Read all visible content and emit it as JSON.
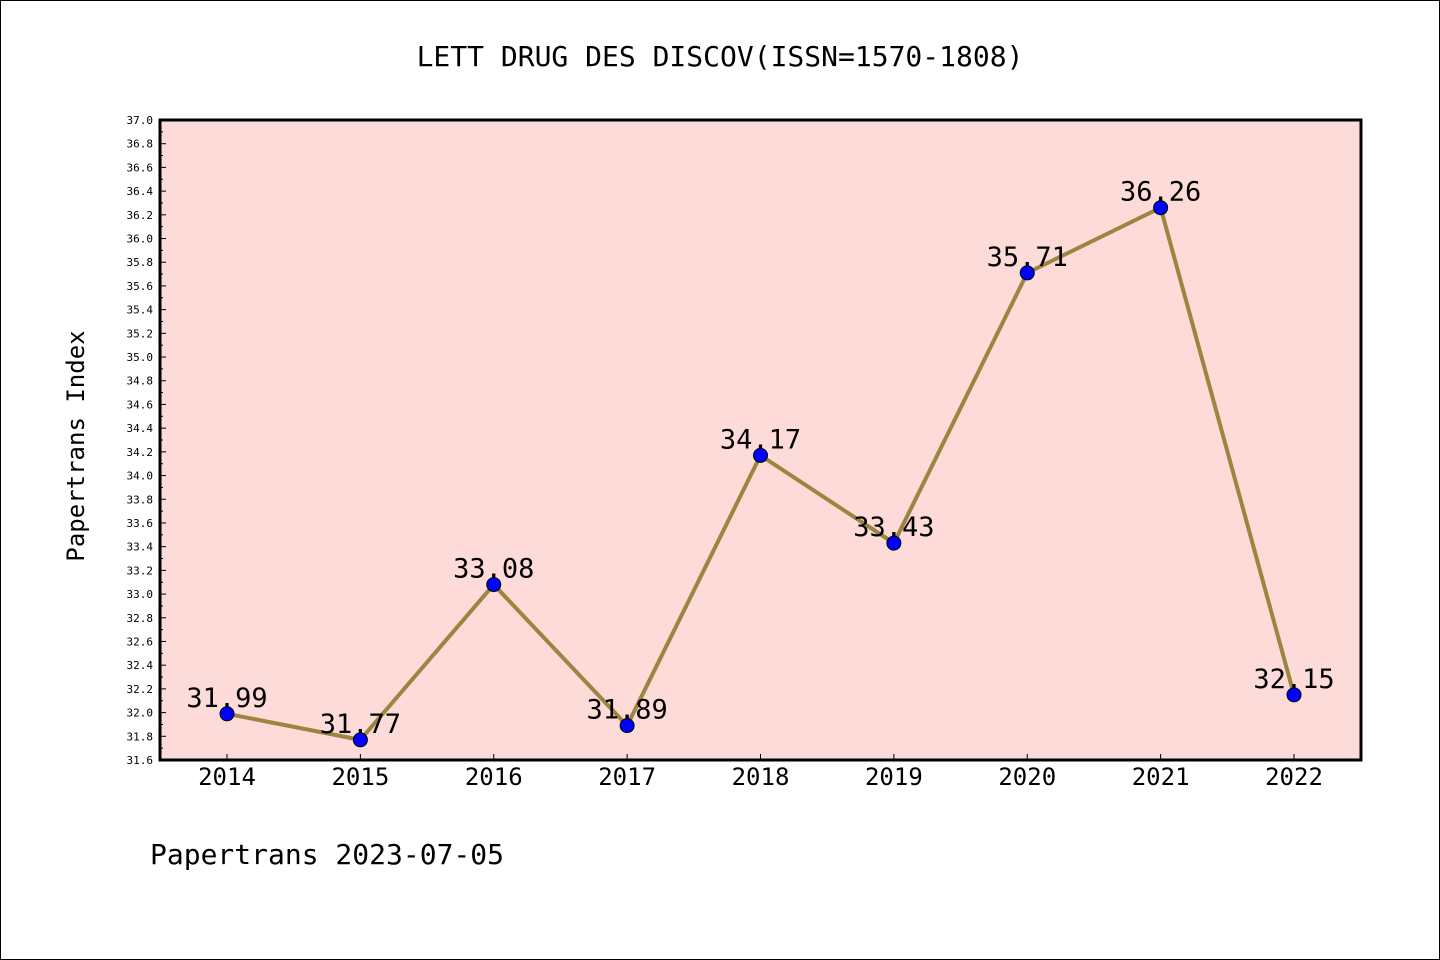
{
  "chart_data": {
    "type": "line",
    "title": "LETT DRUG DES DISCOV(ISSN=1570-1808)",
    "xlabel": "",
    "ylabel": "Papertrans Index",
    "categories": [
      "2014",
      "2015",
      "2016",
      "2017",
      "2018",
      "2019",
      "2020",
      "2021",
      "2022"
    ],
    "values": [
      31.99,
      31.77,
      33.08,
      31.89,
      34.17,
      33.43,
      35.71,
      36.26,
      32.15
    ],
    "data_labels": [
      "31.99",
      "31.77",
      "33.08",
      "31.89",
      "34.17",
      "33.43",
      "35.71",
      "36.26",
      "32.15"
    ],
    "ylim": [
      31.6,
      37.0
    ],
    "y_ticks": [
      "31.6",
      "31.8",
      "32.0",
      "32.2",
      "32.4",
      "32.6",
      "32.8",
      "33.0",
      "33.2",
      "33.4",
      "33.6",
      "33.8",
      "34.0",
      "34.2",
      "34.4",
      "34.6",
      "34.8",
      "35.0",
      "35.2",
      "35.4",
      "35.6",
      "35.8",
      "36.0",
      "36.2",
      "36.4",
      "36.6",
      "36.8",
      "37.0"
    ],
    "grid": false,
    "colors": {
      "plot_background": "#fddbd8",
      "line": "#9b8540",
      "marker": "#0000ff"
    }
  },
  "footer": "Papertrans 2023-07-05"
}
